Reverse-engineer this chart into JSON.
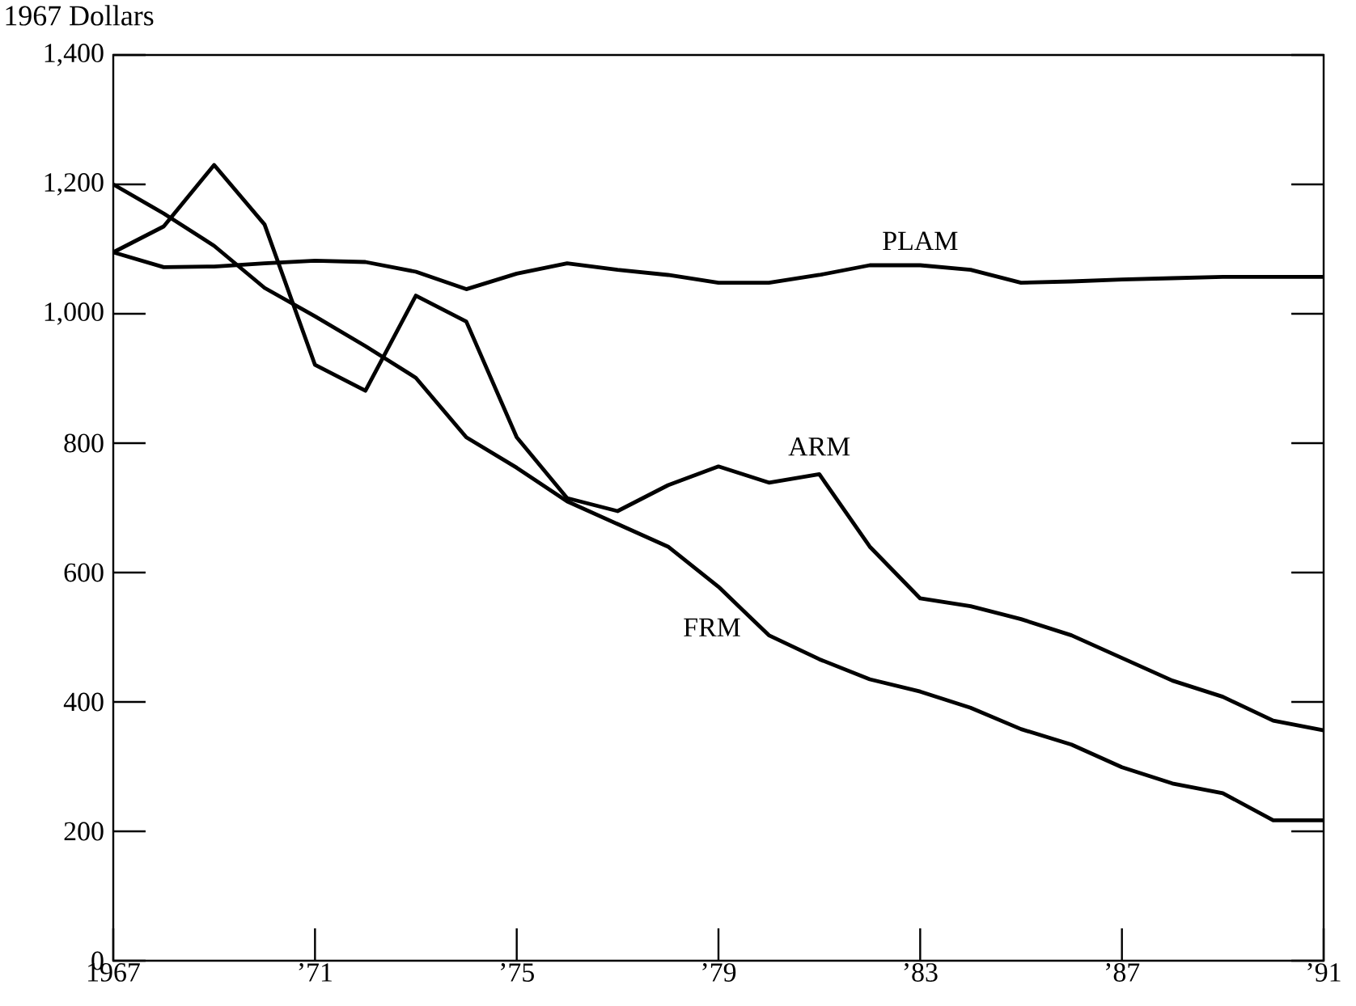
{
  "chart_data": {
    "type": "line",
    "ylabel": "1967 Dollars",
    "x": [
      1967,
      1968,
      1969,
      1970,
      1971,
      1972,
      1973,
      1974,
      1975,
      1976,
      1977,
      1978,
      1979,
      1980,
      1981,
      1982,
      1983,
      1984,
      1985,
      1986,
      1987,
      1988,
      1989,
      1990,
      1991
    ],
    "series": [
      {
        "name": "PLAM",
        "color": "#000000",
        "values": [
          1095,
          1072,
          1073,
          1078,
          1082,
          1080,
          1065,
          1038,
          1062,
          1078,
          1068,
          1060,
          1048,
          1048,
          1060,
          1075,
          1075,
          1068,
          1048,
          1050,
          1053,
          1055,
          1057,
          1057,
          1057
        ]
      },
      {
        "name": "ARM",
        "color": "#000000",
        "values": [
          1095,
          1135,
          1230,
          1138,
          921,
          881,
          1028,
          988,
          809,
          715,
          695,
          735,
          764,
          739,
          752,
          640,
          560,
          548,
          528,
          503,
          468,
          433,
          408,
          371,
          356
        ]
      },
      {
        "name": "FRM",
        "color": "#000000",
        "values": [
          1200,
          1155,
          1105,
          1040,
          996,
          950,
          901,
          809,
          762,
          710,
          675,
          640,
          578,
          503,
          466,
          435,
          416,
          391,
          358,
          334,
          299,
          274,
          259,
          217,
          217
        ]
      }
    ],
    "xlim": [
      1967,
      1991
    ],
    "xticks": [
      {
        "value": 1967,
        "label": "1967"
      },
      {
        "value": 1971,
        "label": "’71"
      },
      {
        "value": 1975,
        "label": "’75"
      },
      {
        "value": 1979,
        "label": "’79"
      },
      {
        "value": 1983,
        "label": "’83"
      },
      {
        "value": 1987,
        "label": "’87"
      },
      {
        "value": 1991,
        "label": "’91"
      }
    ],
    "ylim": [
      0,
      1400
    ],
    "yticks": [
      0,
      200,
      400,
      600,
      800,
      {
        "value": 1000,
        "label": "1,000"
      },
      {
        "value": 1200,
        "label": "1,200"
      },
      {
        "value": 1400,
        "label": "1,400"
      }
    ],
    "grid": false,
    "legend": false,
    "marker": "none",
    "line_style": "solid"
  }
}
